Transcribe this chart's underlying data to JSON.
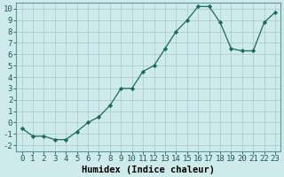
{
  "x": [
    0,
    1,
    2,
    3,
    4,
    5,
    6,
    7,
    8,
    9,
    10,
    11,
    12,
    13,
    14,
    15,
    16,
    17,
    18,
    19,
    20,
    21,
    22,
    23
  ],
  "y": [
    -0.5,
    -1.2,
    -1.2,
    -1.5,
    -1.5,
    -0.8,
    0.0,
    0.5,
    1.5,
    3.0,
    3.0,
    4.5,
    5.0,
    6.5,
    8.0,
    9.0,
    10.2,
    10.2,
    8.8,
    6.5,
    6.3,
    6.3,
    8.8,
    9.7
  ],
  "line_color": "#1a6b5a",
  "marker": "D",
  "marker_size": 2.2,
  "bg_color": "#ceeaea",
  "grid_major_color": "#aacfcf",
  "grid_minor_color": "#bddede",
  "xlabel": "Humidex (Indice chaleur)",
  "xlim": [
    -0.5,
    23.5
  ],
  "ylim": [
    -2.5,
    10.5
  ],
  "xticks": [
    0,
    1,
    2,
    3,
    4,
    5,
    6,
    7,
    8,
    9,
    10,
    11,
    12,
    13,
    14,
    15,
    16,
    17,
    18,
    19,
    20,
    21,
    22,
    23
  ],
  "yticks": [
    -2,
    -1,
    0,
    1,
    2,
    3,
    4,
    5,
    6,
    7,
    8,
    9,
    10
  ],
  "xlabel_fontsize": 7.5,
  "tick_fontsize": 6.5
}
